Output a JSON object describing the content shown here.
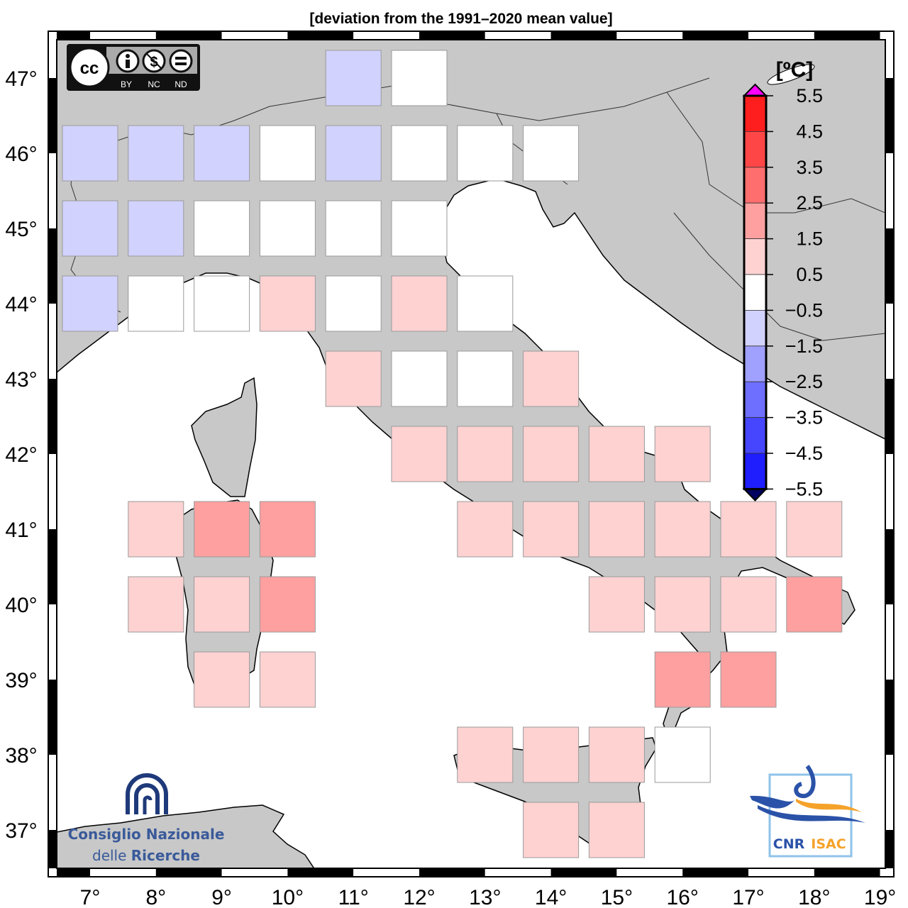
{
  "title": "[deviation from the 1991–2020 mean value]",
  "colors": {
    "land": "#c8c8c8",
    "sea": "#ffffff",
    "coast": "#000000",
    "cell_border": "#9a9a9a"
  },
  "chart_data": {
    "type": "heatmap",
    "title": "[deviation from the 1991–2020 mean value]",
    "unit_label": "[ºC]",
    "x_ticks": [
      7,
      8,
      9,
      10,
      11,
      12,
      13,
      14,
      15,
      16,
      17,
      18,
      19
    ],
    "y_ticks": [
      37,
      38,
      39,
      40,
      41,
      42,
      43,
      44,
      45,
      46,
      47
    ],
    "x_tick_labels": [
      "7°",
      "8°",
      "9°",
      "10°",
      "11°",
      "12°",
      "13°",
      "14°",
      "15°",
      "16°",
      "17°",
      "18°",
      "19°"
    ],
    "y_tick_labels": [
      "37°",
      "38°",
      "39°",
      "40°",
      "41°",
      "42°",
      "43°",
      "44°",
      "45°",
      "46°",
      "47°"
    ],
    "xlim": [
      6.5,
      19.1
    ],
    "ylim": [
      36.5,
      47.5
    ],
    "colorbar": {
      "labels": [
        "5.5",
        "4.5",
        "3.5",
        "2.5",
        "1.5",
        "0.5",
        "−0.5",
        "−1.5",
        "−2.5",
        "−3.5",
        "−4.5",
        "−5.5"
      ],
      "bins": [
        {
          "range": "4.5 to 5.5",
          "color": "#ff1e1e"
        },
        {
          "range": "3.5 to 4.5",
          "color": "#ff4646"
        },
        {
          "range": "2.5 to 3.5",
          "color": "#ff6e6e"
        },
        {
          "range": "1.5 to 2.5",
          "color": "#ffa0a0"
        },
        {
          "range": "0.5 to 1.5",
          "color": "#ffd2d2"
        },
        {
          "range": "-0.5 to 0.5",
          "color": "#ffffff"
        },
        {
          "range": "-1.5 to -0.5",
          "color": "#d2d2ff"
        },
        {
          "range": "-2.5 to -1.5",
          "color": "#a0a0ff"
        },
        {
          "range": "-3.5 to -2.5",
          "color": "#6e6eff"
        },
        {
          "range": "-4.5 to -3.5",
          "color": "#4646ff"
        },
        {
          "range": "-5.5 to -4.5",
          "color": "#1e1eff"
        }
      ],
      "over_color": "#ff00ff",
      "under_color": "#000060"
    },
    "cells": [
      {
        "lon": 11,
        "lat": 47,
        "value": -1
      },
      {
        "lon": 12,
        "lat": 47,
        "value": 0
      },
      {
        "lon": 7,
        "lat": 46,
        "value": -1
      },
      {
        "lon": 8,
        "lat": 46,
        "value": -1
      },
      {
        "lon": 9,
        "lat": 46,
        "value": -1
      },
      {
        "lon": 10,
        "lat": 46,
        "value": 0
      },
      {
        "lon": 11,
        "lat": 46,
        "value": -1
      },
      {
        "lon": 12,
        "lat": 46,
        "value": 0
      },
      {
        "lon": 13,
        "lat": 46,
        "value": 0
      },
      {
        "lon": 14,
        "lat": 46,
        "value": 0
      },
      {
        "lon": 7,
        "lat": 45,
        "value": -1
      },
      {
        "lon": 8,
        "lat": 45,
        "value": -1
      },
      {
        "lon": 9,
        "lat": 45,
        "value": 0
      },
      {
        "lon": 10,
        "lat": 45,
        "value": 0
      },
      {
        "lon": 11,
        "lat": 45,
        "value": 0
      },
      {
        "lon": 12,
        "lat": 45,
        "value": 0
      },
      {
        "lon": 7,
        "lat": 44,
        "value": -1
      },
      {
        "lon": 8,
        "lat": 44,
        "value": 0
      },
      {
        "lon": 9,
        "lat": 44,
        "value": 0
      },
      {
        "lon": 10,
        "lat": 44,
        "value": 1
      },
      {
        "lon": 11,
        "lat": 44,
        "value": 0
      },
      {
        "lon": 12,
        "lat": 44,
        "value": 1
      },
      {
        "lon": 13,
        "lat": 44,
        "value": 0
      },
      {
        "lon": 11,
        "lat": 43,
        "value": 1
      },
      {
        "lon": 12,
        "lat": 43,
        "value": 0
      },
      {
        "lon": 13,
        "lat": 43,
        "value": 0
      },
      {
        "lon": 14,
        "lat": 43,
        "value": 1
      },
      {
        "lon": 12,
        "lat": 42,
        "value": 1
      },
      {
        "lon": 13,
        "lat": 42,
        "value": 1
      },
      {
        "lon": 14,
        "lat": 42,
        "value": 1
      },
      {
        "lon": 15,
        "lat": 42,
        "value": 1
      },
      {
        "lon": 16,
        "lat": 42,
        "value": 1
      },
      {
        "lon": 8,
        "lat": 41,
        "value": 1
      },
      {
        "lon": 9,
        "lat": 41,
        "value": 2
      },
      {
        "lon": 10,
        "lat": 41,
        "value": 2
      },
      {
        "lon": 13,
        "lat": 41,
        "value": 1
      },
      {
        "lon": 14,
        "lat": 41,
        "value": 1
      },
      {
        "lon": 15,
        "lat": 41,
        "value": 1
      },
      {
        "lon": 16,
        "lat": 41,
        "value": 1
      },
      {
        "lon": 17,
        "lat": 41,
        "value": 1
      },
      {
        "lon": 18,
        "lat": 41,
        "value": 1
      },
      {
        "lon": 8,
        "lat": 40,
        "value": 1
      },
      {
        "lon": 9,
        "lat": 40,
        "value": 1
      },
      {
        "lon": 10,
        "lat": 40,
        "value": 2
      },
      {
        "lon": 15,
        "lat": 40,
        "value": 1
      },
      {
        "lon": 16,
        "lat": 40,
        "value": 1
      },
      {
        "lon": 17,
        "lat": 40,
        "value": 1
      },
      {
        "lon": 18,
        "lat": 40,
        "value": 2
      },
      {
        "lon": 9,
        "lat": 39,
        "value": 1
      },
      {
        "lon": 10,
        "lat": 39,
        "value": 1
      },
      {
        "lon": 16,
        "lat": 39,
        "value": 2
      },
      {
        "lon": 17,
        "lat": 39,
        "value": 2
      },
      {
        "lon": 13,
        "lat": 38,
        "value": 1
      },
      {
        "lon": 14,
        "lat": 38,
        "value": 1
      },
      {
        "lon": 15,
        "lat": 38,
        "value": 1
      },
      {
        "lon": 16,
        "lat": 38,
        "value": 0
      },
      {
        "lon": 14,
        "lat": 37,
        "value": 1
      },
      {
        "lon": 15,
        "lat": 37,
        "value": 1
      }
    ]
  },
  "logos": {
    "cc": {
      "main": "cc",
      "terms": [
        "BY",
        "NC",
        "ND"
      ]
    },
    "cnr": {
      "line1": "Consiglio Nazionale",
      "line2a": "delle ",
      "line2b": "Ricerche",
      "color": "#1f3a7a"
    },
    "isac": {
      "left": "CNR",
      "right": "ISAC",
      "blue": "#2a52a8",
      "orange": "#f5a22a",
      "frame": "#8fc3ea"
    }
  }
}
